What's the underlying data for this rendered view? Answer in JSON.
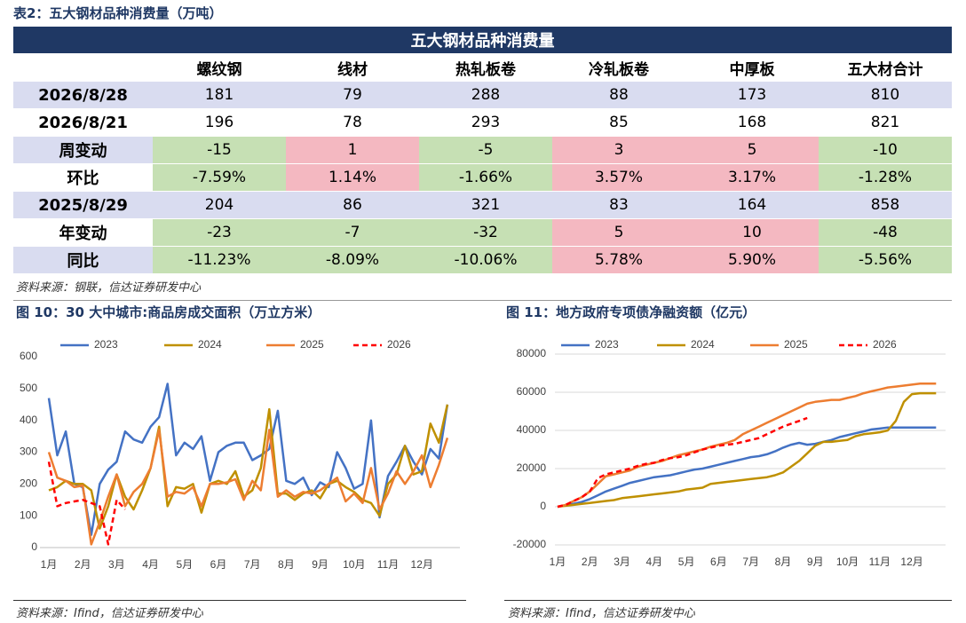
{
  "title": "表2：五大钢材品种消费量（万吨）",
  "table": {
    "caption": "五大钢材品种消费量",
    "columns": [
      "螺纹钢",
      "线材",
      "热轧板卷",
      "冷轧板卷",
      "中厚板",
      "五大材合计"
    ],
    "rows": [
      {
        "label": "2026/8/28",
        "cells": [
          "181",
          "79",
          "288",
          "88",
          "173",
          "810"
        ],
        "label_shade": true,
        "row_shade": true,
        "sign_colors": false
      },
      {
        "label": "2026/8/21",
        "cells": [
          "196",
          "78",
          "293",
          "85",
          "168",
          "821"
        ],
        "label_shade": false,
        "row_shade": false,
        "sign_colors": false
      },
      {
        "label": "周变动",
        "cells": [
          "-15",
          "1",
          "-5",
          "3",
          "5",
          "-10"
        ],
        "label_shade": true,
        "row_shade": false,
        "sign_colors": true
      },
      {
        "label": "环比",
        "cells": [
          "-7.59%",
          "1.14%",
          "-1.66%",
          "3.57%",
          "3.17%",
          "-1.28%"
        ],
        "label_shade": false,
        "row_shade": false,
        "sign_colors": true
      },
      {
        "label": "2025/8/29",
        "cells": [
          "204",
          "86",
          "321",
          "83",
          "164",
          "858"
        ],
        "label_shade": true,
        "row_shade": true,
        "sign_colors": false
      },
      {
        "label": "年变动",
        "cells": [
          "-23",
          "-7",
          "-32",
          "5",
          "10",
          "-48"
        ],
        "label_shade": false,
        "row_shade": false,
        "sign_colors": true
      },
      {
        "label": "同比",
        "cells": [
          "-11.23%",
          "-8.09%",
          "-10.06%",
          "5.78%",
          "5.90%",
          "-5.56%"
        ],
        "label_shade": true,
        "row_shade": false,
        "sign_colors": true
      }
    ],
    "source": "资料来源：钢联，信达证券研发中心"
  },
  "chart_data": [
    {
      "type": "line",
      "title": "图 10：30 大中城市:商品房成交面积（万立方米）",
      "source": "资料来源：Ifind，信达证券研发中心",
      "categories": [
        "1月",
        null,
        null,
        null,
        "2月",
        null,
        null,
        null,
        "3月",
        null,
        null,
        null,
        "4月",
        null,
        null,
        null,
        "5月",
        null,
        null,
        null,
        "6月",
        null,
        null,
        null,
        "7月",
        null,
        null,
        null,
        "8月",
        null,
        null,
        null,
        "9月",
        null,
        null,
        null,
        "10月",
        null,
        null,
        null,
        "11月",
        null,
        null,
        null,
        "12月",
        null,
        null,
        null
      ],
      "ylim": [
        0,
        600
      ],
      "yticks": [
        0,
        100,
        200,
        300,
        400,
        500,
        600
      ],
      "grid": false,
      "series": [
        {
          "name": "2023",
          "color": "#4472c4",
          "dashed": false,
          "values": [
            470,
            290,
            365,
            200,
            190,
            40,
            200,
            245,
            270,
            365,
            340,
            330,
            380,
            410,
            515,
            290,
            330,
            310,
            350,
            210,
            300,
            320,
            330,
            330,
            275,
            290,
            310,
            430,
            210,
            200,
            220,
            165,
            205,
            190,
            300,
            250,
            185,
            200,
            400,
            95,
            225,
            270,
            320,
            270,
            230,
            310,
            280,
            450
          ]
        },
        {
          "name": "2024",
          "color": "#bf9000",
          "dashed": false,
          "values": [
            180,
            190,
            210,
            200,
            200,
            180,
            60,
            130,
            230,
            160,
            120,
            180,
            250,
            380,
            130,
            190,
            185,
            200,
            110,
            200,
            210,
            200,
            240,
            160,
            180,
            250,
            435,
            170,
            170,
            150,
            170,
            180,
            155,
            200,
            210,
            190,
            175,
            150,
            140,
            100,
            200,
            230,
            320,
            230,
            240,
            390,
            330,
            450
          ]
        },
        {
          "name": "2025",
          "color": "#ed7d31",
          "dashed": false,
          "values": [
            300,
            220,
            210,
            190,
            195,
            10,
            80,
            160,
            230,
            130,
            175,
            200,
            250,
            370,
            160,
            175,
            170,
            190,
            130,
            200,
            200,
            205,
            215,
            150,
            210,
            180,
            370,
            160,
            180,
            160,
            175,
            170,
            180,
            200,
            220,
            145,
            170,
            140,
            250,
            120,
            170,
            240,
            200,
            240,
            290,
            190,
            260,
            345
          ]
        },
        {
          "name": "2026",
          "color": "#ff0000",
          "dashed": true,
          "values": [
            270,
            130,
            140,
            145,
            150,
            140,
            130,
            10,
            150,
            120,
            null,
            null,
            null,
            null,
            null,
            null,
            null,
            null,
            null,
            null,
            null,
            null,
            null,
            null,
            null,
            null,
            null,
            null,
            null,
            null,
            null,
            null,
            null,
            null,
            null,
            null,
            null,
            null,
            null,
            null,
            null,
            null,
            null,
            null,
            null,
            null,
            null,
            null
          ]
        }
      ]
    },
    {
      "type": "line",
      "title": "图 11：地方政府专项债净融资额（亿元）",
      "source": "资料来源：Ifind，信达证券研发中心",
      "categories": [
        "1月",
        null,
        null,
        null,
        "2月",
        null,
        null,
        null,
        "3月",
        null,
        null,
        null,
        "4月",
        null,
        null,
        null,
        "5月",
        null,
        null,
        null,
        "6月",
        null,
        null,
        null,
        "7月",
        null,
        null,
        null,
        "8月",
        null,
        null,
        null,
        "9月",
        null,
        null,
        null,
        "10月",
        null,
        null,
        null,
        "11月",
        null,
        null,
        null,
        "12月",
        null,
        null,
        null
      ],
      "ylim": [
        -20000,
        80000
      ],
      "yticks": [
        -20000,
        0,
        20000,
        40000,
        60000,
        80000
      ],
      "grid": true,
      "series": [
        {
          "name": "2023",
          "color": "#4472c4",
          "dashed": false,
          "values": [
            0,
            800,
            1600,
            2500,
            4000,
            6000,
            8000,
            9500,
            11000,
            12500,
            13500,
            14500,
            15500,
            16000,
            16500,
            17500,
            18500,
            19500,
            20000,
            21000,
            22000,
            23000,
            24000,
            25000,
            26000,
            26500,
            27500,
            29000,
            31000,
            32500,
            33500,
            32500,
            33000,
            34000,
            35000,
            36500,
            37500,
            38500,
            39500,
            40500,
            41000,
            41500,
            41500,
            41500,
            41500,
            41500,
            41500,
            41500
          ]
        },
        {
          "name": "2024",
          "color": "#bf9000",
          "dashed": false,
          "values": [
            0,
            500,
            1000,
            1500,
            2000,
            2500,
            3000,
            3500,
            4500,
            5000,
            5500,
            6000,
            6500,
            7000,
            7500,
            8000,
            9000,
            9500,
            10000,
            12000,
            12500,
            13000,
            13500,
            14000,
            14500,
            15000,
            15500,
            16500,
            18000,
            21000,
            24000,
            28000,
            32000,
            34000,
            34000,
            34500,
            35000,
            37000,
            38000,
            38500,
            39000,
            40000,
            45000,
            55000,
            59000,
            59500,
            59500,
            59500
          ]
        },
        {
          "name": "2025",
          "color": "#ed7d31",
          "dashed": false,
          "values": [
            0,
            1000,
            3000,
            5000,
            8000,
            12000,
            16000,
            17000,
            18000,
            19000,
            21000,
            22000,
            23000,
            24000,
            25500,
            27000,
            28000,
            29000,
            30000,
            31500,
            32500,
            33500,
            35000,
            38000,
            40000,
            42000,
            44000,
            46000,
            48000,
            50000,
            52000,
            54000,
            55000,
            55500,
            56000,
            56000,
            57000,
            58000,
            59500,
            60500,
            61500,
            62500,
            63000,
            63500,
            64000,
            64500,
            64500,
            64500
          ]
        },
        {
          "name": "2026",
          "color": "#ff0000",
          "dashed": true,
          "values": [
            0,
            1000,
            3000,
            5000,
            8000,
            15000,
            17000,
            18000,
            19000,
            20000,
            21500,
            22500,
            23000,
            24500,
            25500,
            26000,
            27000,
            28500,
            30000,
            31000,
            32000,
            32500,
            33000,
            34000,
            35000,
            36000,
            38000,
            40000,
            42000,
            43500,
            45000,
            46500,
            null,
            null,
            null,
            null,
            null,
            null,
            null,
            null,
            null,
            null,
            null,
            null,
            null,
            null,
            null,
            null
          ]
        }
      ]
    }
  ]
}
